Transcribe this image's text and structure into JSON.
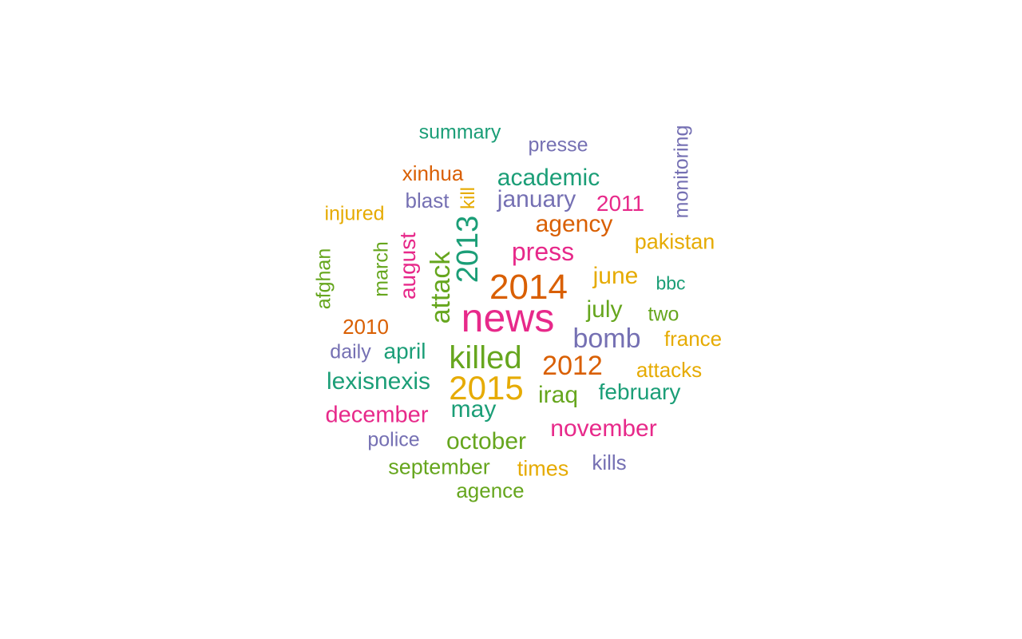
{
  "palette": {
    "teal": "#1b9e77",
    "orange": "#d95f02",
    "purple": "#7570b3",
    "magenta": "#e7298a",
    "green": "#66a61e",
    "gold": "#e6ab02"
  },
  "words": [
    {
      "text": "news",
      "color": "#e7298a",
      "orientation": "horizontal"
    },
    {
      "text": "2014",
      "color": "#d95f02",
      "orientation": "horizontal"
    },
    {
      "text": "killed",
      "color": "#66a61e",
      "orientation": "horizontal"
    },
    {
      "text": "2015",
      "color": "#e6ab02",
      "orientation": "horizontal"
    },
    {
      "text": "attack",
      "color": "#66a61e",
      "orientation": "vertical"
    },
    {
      "text": "2013",
      "color": "#1b9e77",
      "orientation": "vertical"
    },
    {
      "text": "bomb",
      "color": "#7570b3",
      "orientation": "horizontal"
    },
    {
      "text": "2012",
      "color": "#d95f02",
      "orientation": "horizontal"
    },
    {
      "text": "press",
      "color": "#e7298a",
      "orientation": "horizontal"
    },
    {
      "text": "academic",
      "color": "#1b9e77",
      "orientation": "horizontal"
    },
    {
      "text": "agency",
      "color": "#d95f02",
      "orientation": "horizontal"
    },
    {
      "text": "january",
      "color": "#7570b3",
      "orientation": "horizontal"
    },
    {
      "text": "august",
      "color": "#e7298a",
      "orientation": "vertical"
    },
    {
      "text": "june",
      "color": "#e6ab02",
      "orientation": "horizontal"
    },
    {
      "text": "july",
      "color": "#66a61e",
      "orientation": "horizontal"
    },
    {
      "text": "lexisnexis",
      "color": "#1b9e77",
      "orientation": "horizontal"
    },
    {
      "text": "december",
      "color": "#e7298a",
      "orientation": "horizontal"
    },
    {
      "text": "may",
      "color": "#1b9e77",
      "orientation": "horizontal"
    },
    {
      "text": "october",
      "color": "#66a61e",
      "orientation": "horizontal"
    },
    {
      "text": "november",
      "color": "#e7298a",
      "orientation": "horizontal"
    },
    {
      "text": "iraq",
      "color": "#66a61e",
      "orientation": "horizontal"
    },
    {
      "text": "february",
      "color": "#1b9e77",
      "orientation": "horizontal"
    },
    {
      "text": "april",
      "color": "#1b9e77",
      "orientation": "horizontal"
    },
    {
      "text": "september",
      "color": "#66a61e",
      "orientation": "horizontal"
    },
    {
      "text": "pakistan",
      "color": "#e6ab02",
      "orientation": "horizontal"
    },
    {
      "text": "2011",
      "color": "#e7298a",
      "orientation": "horizontal"
    },
    {
      "text": "xinhua",
      "color": "#d95f02",
      "orientation": "horizontal"
    },
    {
      "text": "summary",
      "color": "#1b9e77",
      "orientation": "horizontal"
    },
    {
      "text": "presse",
      "color": "#7570b3",
      "orientation": "horizontal"
    },
    {
      "text": "blast",
      "color": "#7570b3",
      "orientation": "horizontal"
    },
    {
      "text": "kill",
      "color": "#e6ab02",
      "orientation": "vertical"
    },
    {
      "text": "monitoring",
      "color": "#7570b3",
      "orientation": "vertical"
    },
    {
      "text": "injured",
      "color": "#e6ab02",
      "orientation": "horizontal"
    },
    {
      "text": "march",
      "color": "#66a61e",
      "orientation": "vertical"
    },
    {
      "text": "afghan",
      "color": "#66a61e",
      "orientation": "vertical"
    },
    {
      "text": "2010",
      "color": "#d95f02",
      "orientation": "horizontal"
    },
    {
      "text": "daily",
      "color": "#7570b3",
      "orientation": "horizontal"
    },
    {
      "text": "bbc",
      "color": "#1b9e77",
      "orientation": "horizontal"
    },
    {
      "text": "two",
      "color": "#66a61e",
      "orientation": "horizontal"
    },
    {
      "text": "france",
      "color": "#e6ab02",
      "orientation": "horizontal"
    },
    {
      "text": "attacks",
      "color": "#e6ab02",
      "orientation": "horizontal"
    },
    {
      "text": "police",
      "color": "#7570b3",
      "orientation": "horizontal"
    },
    {
      "text": "times",
      "color": "#e6ab02",
      "orientation": "horizontal"
    },
    {
      "text": "kills",
      "color": "#7570b3",
      "orientation": "horizontal"
    },
    {
      "text": "agence",
      "color": "#66a61e",
      "orientation": "horizontal"
    }
  ]
}
